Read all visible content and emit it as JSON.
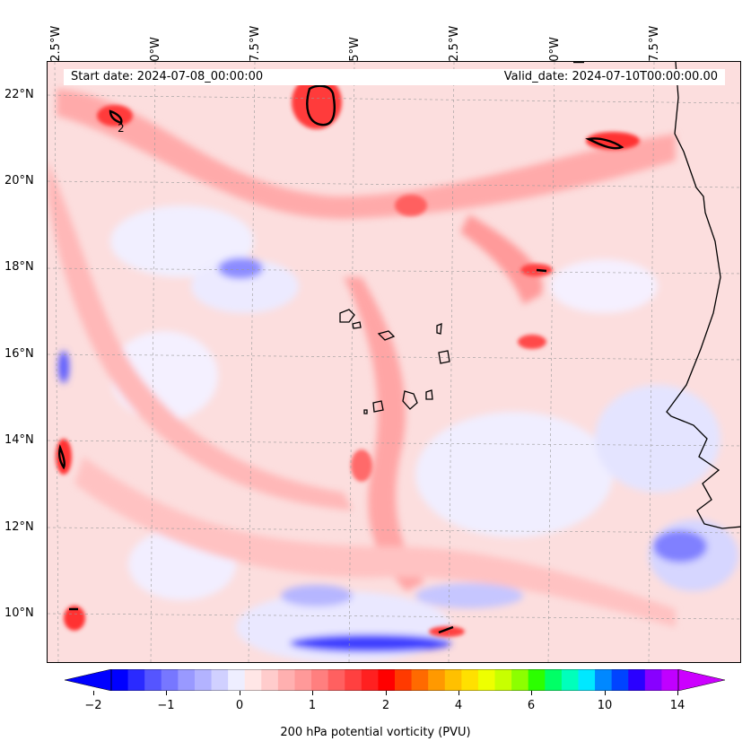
{
  "header": {
    "start_date": "Start date: 2024-07-08_00:00:00",
    "valid_date": "Valid_date: 2024-07-10T00:00:00.00"
  },
  "axes": {
    "longitude_labels": [
      "32.5°W",
      "30°W",
      "27.5°W",
      "25°W",
      "22.5°W",
      "20°W",
      "17.5°W"
    ],
    "latitude_labels": [
      "22°N",
      "20°N",
      "18°N",
      "16°N",
      "14°N",
      "12°N",
      "10°N"
    ],
    "grid": true
  },
  "map": {
    "contour_label": "2",
    "islands": "Cape Verde Islands",
    "coastline": "West African coast"
  },
  "colorbar": {
    "label": "200 hPa potential vorticity (PVU)",
    "ticks": [
      "−2",
      "−1",
      "0",
      "1",
      "2",
      "4",
      "6",
      "10",
      "14"
    ],
    "colors": [
      "#0000ff",
      "#2a2aff",
      "#5555ff",
      "#7777ff",
      "#9999ff",
      "#b3b3ff",
      "#d0d0ff",
      "#eeeeff",
      "#ffe6e6",
      "#ffcccc",
      "#ffb0b0",
      "#ff9999",
      "#ff7f7f",
      "#ff6060",
      "#ff4040",
      "#ff2020",
      "#ff0000",
      "#ff3a00",
      "#ff6a00",
      "#ff9900",
      "#ffc000",
      "#ffe000",
      "#eeff00",
      "#c8ff00",
      "#8cff00",
      "#2cff00",
      "#00ff66",
      "#00ffbb",
      "#00e8ff",
      "#0088ff",
      "#0044ff",
      "#2a00ff",
      "#8800ff",
      "#c000ff"
    ],
    "extend_low_color": "#0000ff",
    "extend_high_color": "#cc00ff"
  }
}
